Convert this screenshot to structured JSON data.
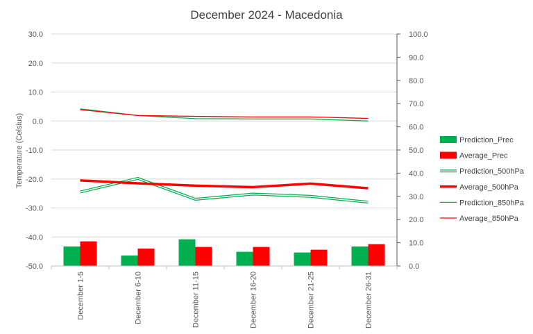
{
  "chart_data": {
    "type": "bar+line",
    "title": "December 2024 - Macedonia",
    "ylabel": "Temperature (Celsius)",
    "ylim": [
      -50,
      30
    ],
    "yticks": [
      "30.0",
      "20.0",
      "10.0",
      "0.0",
      "-10.0",
      "-20.0",
      "-30.0",
      "-40.0",
      "-50.0"
    ],
    "y2lim": [
      0,
      100
    ],
    "y2ticks": [
      "100.0",
      "90.0",
      "80.0",
      "70.0",
      "60.0",
      "50.0",
      "40.0",
      "30.0",
      "20.0",
      "10.0",
      "0.0"
    ],
    "categories": [
      "December 1-5",
      "December 6-10",
      "December 11-15",
      "December 16-20",
      "December 21-25",
      "December 26-31"
    ],
    "grid": true,
    "legend_position": "right",
    "series": [
      {
        "name": "Prediction_Prec",
        "kind": "bar",
        "axis": "right",
        "color": "#00b050",
        "values": [
          8.4,
          4.5,
          11.5,
          6.1,
          5.8,
          8.4
        ]
      },
      {
        "name": "Average_Prec",
        "kind": "bar",
        "axis": "right",
        "color": "#ff0000",
        "values": [
          10.6,
          7.5,
          8.2,
          8.2,
          7.0,
          9.4
        ]
      },
      {
        "name": "Prediction_500hPa",
        "kind": "line",
        "style": "double",
        "axis": "left",
        "color": "#00b050",
        "values": [
          -24.5,
          -19.8,
          -27.0,
          -25.2,
          -26.0,
          -28.0
        ]
      },
      {
        "name": "Average_500hPa",
        "kind": "line",
        "style": "thick",
        "axis": "left",
        "color": "#ff0000",
        "values": [
          -20.5,
          -21.5,
          -22.3,
          -22.8,
          -21.6,
          -23.2
        ]
      },
      {
        "name": "Prediction_850hPa",
        "kind": "line",
        "style": "thin",
        "axis": "left",
        "color": "#00b050",
        "values": [
          4.2,
          1.9,
          0.8,
          0.7,
          0.7,
          0.0
        ]
      },
      {
        "name": "Average_850hPa",
        "kind": "line",
        "style": "thin",
        "axis": "left",
        "color": "#ff0000",
        "values": [
          3.9,
          1.9,
          1.6,
          1.4,
          1.4,
          0.9
        ]
      }
    ]
  }
}
